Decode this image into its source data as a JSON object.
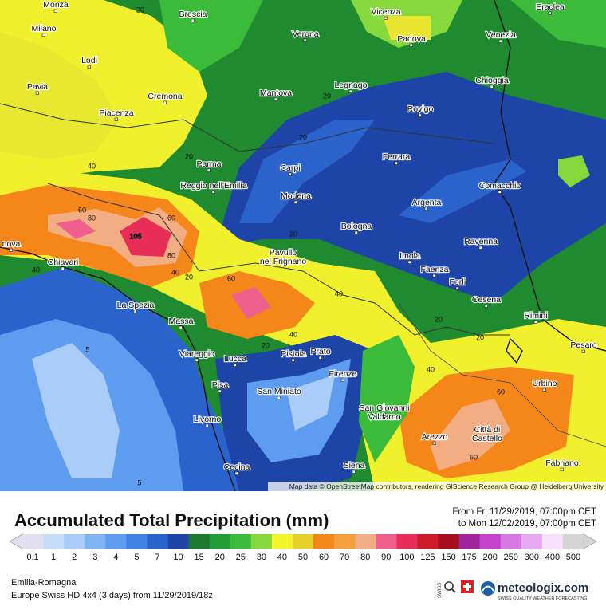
{
  "map": {
    "cities": [
      {
        "lines": [
          "Monza"
        ]
      },
      {
        "lines": [
          "Brescia"
        ]
      },
      {
        "lines": [
          "Vicenza"
        ]
      },
      {
        "lines": [
          "Eraclea"
        ]
      },
      {
        "lines": [
          "Milano"
        ]
      },
      {
        "lines": [
          "Verona"
        ]
      },
      {
        "lines": [
          "Padova"
        ]
      },
      {
        "lines": [
          "Venezia"
        ]
      },
      {
        "lines": [
          "Lodi"
        ]
      },
      {
        "lines": [
          "Pavia"
        ]
      },
      {
        "lines": [
          "Mantova"
        ]
      },
      {
        "lines": [
          "Legnago"
        ]
      },
      {
        "lines": [
          "Rovigo"
        ]
      },
      {
        "lines": [
          "Chioggia"
        ]
      },
      {
        "lines": [
          "Cremona"
        ]
      },
      {
        "lines": [
          "Piacenza"
        ]
      },
      {
        "lines": [
          "Ferrara"
        ]
      },
      {
        "lines": [
          "Parma"
        ]
      },
      {
        "lines": [
          "Carpi"
        ]
      },
      {
        "lines": [
          "Comacchio"
        ]
      },
      {
        "lines": [
          "Reggio nell'Emilia"
        ]
      },
      {
        "lines": [
          "Modena"
        ]
      },
      {
        "lines": [
          "Argenta"
        ]
      },
      {
        "lines": [
          "Bologna"
        ]
      },
      {
        "lines": [
          "Ravenna"
        ]
      },
      {
        "lines": [
          "nova"
        ]
      },
      {
        "lines": [
          "Pavullo",
          "nel Frignano"
        ]
      },
      {
        "lines": [
          "Imola"
        ]
      },
      {
        "lines": [
          "Chiavari"
        ]
      },
      {
        "lines": [
          "Faenza"
        ]
      },
      {
        "lines": [
          "Forlì"
        ]
      },
      {
        "lines": [
          "La Spezia"
        ]
      },
      {
        "lines": [
          "Cesena"
        ]
      },
      {
        "lines": [
          "Rimini"
        ]
      },
      {
        "lines": [
          "Massa"
        ]
      },
      {
        "lines": [
          "Pesaro"
        ]
      },
      {
        "lines": [
          "Viareggio"
        ]
      },
      {
        "lines": [
          "Lucca"
        ]
      },
      {
        "lines": [
          "Pistoia"
        ]
      },
      {
        "lines": [
          "Prato"
        ]
      },
      {
        "lines": [
          "Firenze"
        ]
      },
      {
        "lines": [
          "Urbino"
        ]
      },
      {
        "lines": [
          "Pisa"
        ]
      },
      {
        "lines": [
          "San Miniato"
        ]
      },
      {
        "lines": [
          "San Giovanni",
          "Valdarno"
        ]
      },
      {
        "lines": [
          "Livorno"
        ]
      },
      {
        "lines": [
          "Città di",
          "Castello"
        ]
      },
      {
        "lines": [
          "Arezzo"
        ]
      },
      {
        "lines": [
          "Cecina"
        ]
      },
      {
        "lines": [
          "Siena"
        ]
      },
      {
        "lines": [
          "Fabriano"
        ]
      }
    ],
    "contour_labels": [
      "20",
      "20",
      "40",
      "60",
      "80",
      "60",
      "105",
      "80",
      "40",
      "40",
      "20",
      "60",
      "40",
      "20",
      "40",
      "20",
      "5",
      "5",
      "40",
      "60",
      "60",
      "20",
      "20",
      "20",
      "20"
    ],
    "attribution": "Map data © OpenStreetMap contributors, rendering GIScience Research Group @ Heidelberg University"
  },
  "legend": {
    "title": "Accumulated Total Precipitation (mm)",
    "period_from": "From Fri 11/29/2019, 07:00pm CET",
    "period_to": "to Mon 12/02/2019, 07:00pm CET",
    "classes": [
      {
        "label": "0.1",
        "color": "#e2dff0"
      },
      {
        "label": "1",
        "color": "#c6defa"
      },
      {
        "label": "2",
        "color": "#a9cdf8"
      },
      {
        "label": "3",
        "color": "#80b5f4"
      },
      {
        "label": "4",
        "color": "#5d9cee"
      },
      {
        "label": "5",
        "color": "#3f80e4"
      },
      {
        "label": "7",
        "color": "#2b63cc"
      },
      {
        "label": "10",
        "color": "#1d44a6"
      },
      {
        "label": "15",
        "color": "#1b7a2f"
      },
      {
        "label": "20",
        "color": "#249c36"
      },
      {
        "label": "25",
        "color": "#3cbb3b"
      },
      {
        "label": "30",
        "color": "#86d83c"
      },
      {
        "label": "40",
        "color": "#f4f42c"
      },
      {
        "label": "50",
        "color": "#e6cf2a"
      },
      {
        "label": "60",
        "color": "#f5861a"
      },
      {
        "label": "70",
        "color": "#f5a03c"
      },
      {
        "label": "80",
        "color": "#f3ad82"
      },
      {
        "label": "90",
        "color": "#f0608e"
      },
      {
        "label": "100",
        "color": "#e82e58"
      },
      {
        "label": "125",
        "color": "#cc1c2c"
      },
      {
        "label": "150",
        "color": "#a80f1c"
      },
      {
        "label": "175",
        "color": "#a0249e"
      },
      {
        "label": "200",
        "color": "#c442cc"
      },
      {
        "label": "250",
        "color": "#d878e2"
      },
      {
        "label": "300",
        "color": "#e8aaf2"
      },
      {
        "label": "400",
        "color": "#f5e2fa"
      },
      {
        "label": "500",
        "color": "#d4d4d4"
      }
    ]
  },
  "footer": {
    "region": "Emilia-Romagna",
    "model": "Europe Swiss HD 4x4 (3 days) from 11/29/2019/18z",
    "brand": "meteologix.com",
    "tagline": "SWISS QUALITY WEATHER FORECASTING"
  }
}
